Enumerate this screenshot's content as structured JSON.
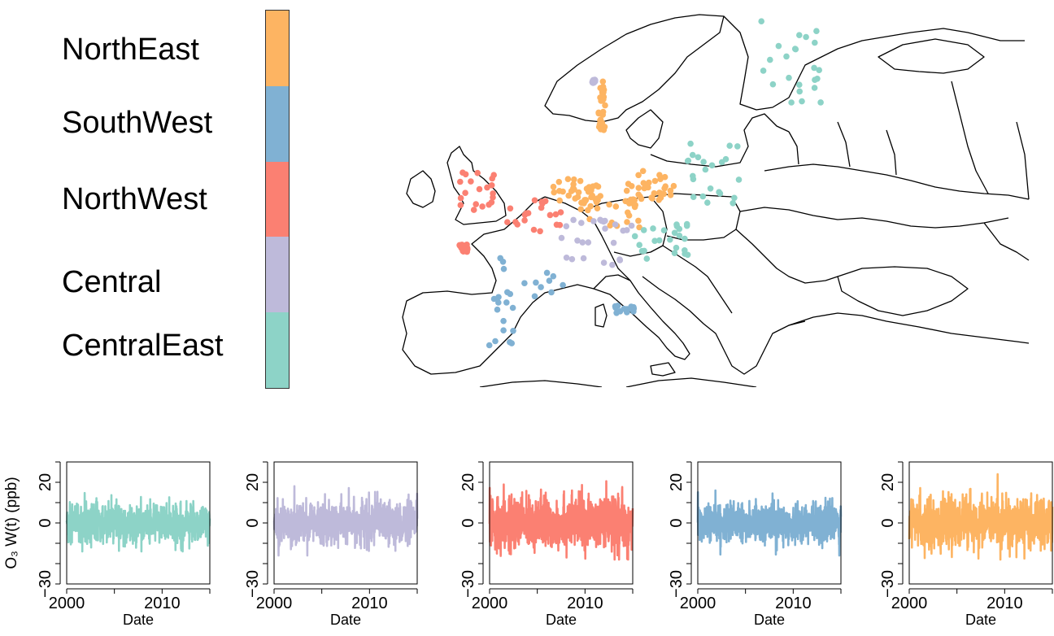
{
  "legend": {
    "regions": [
      {
        "label": "NorthEast",
        "color": "#FDB462"
      },
      {
        "label": "SouthWest",
        "color": "#80B1D3"
      },
      {
        "label": "NorthWest",
        "color": "#FB8072"
      },
      {
        "label": "Central",
        "color": "#BEBADA"
      },
      {
        "label": "CentralEast",
        "color": "#8DD3C7"
      }
    ]
  },
  "map": {
    "station_groups": [
      {
        "region": "NorthEast",
        "color": "#FDB462",
        "count": 120
      },
      {
        "region": "SouthWest",
        "color": "#80B1D3",
        "count": 40
      },
      {
        "region": "NorthWest",
        "color": "#FB8072",
        "count": 60
      },
      {
        "region": "Central",
        "color": "#BEBADA",
        "count": 50
      },
      {
        "region": "CentralEast",
        "color": "#8DD3C7",
        "count": 70
      }
    ]
  },
  "chart_data": [
    {
      "type": "line",
      "series": [
        {
          "color": "#8DD3C7",
          "range": [
            -14,
            18
          ]
        }
      ],
      "x_ticks": [
        "2000",
        "2010"
      ],
      "y_ticks": [
        "−30",
        "0",
        "20"
      ],
      "xlim": [
        2000,
        2015
      ],
      "ylim": [
        -30,
        30
      ],
      "xlabel": "Date",
      "ylabel": "O₃ W(t) (ppb)"
    },
    {
      "type": "line",
      "series": [
        {
          "color": "#BEBADA",
          "range": [
            -16,
            20
          ]
        }
      ],
      "x_ticks": [
        "2000",
        "2010"
      ],
      "y_ticks": [
        "−30",
        "0",
        "20"
      ],
      "xlim": [
        2000,
        2015
      ],
      "ylim": [
        -30,
        30
      ],
      "xlabel": "Date",
      "ylabel": ""
    },
    {
      "type": "line",
      "series": [
        {
          "color": "#FB8072",
          "range": [
            -18,
            26
          ]
        }
      ],
      "x_ticks": [
        "2000",
        "2010"
      ],
      "y_ticks": [
        "−30",
        "0",
        "20"
      ],
      "xlim": [
        2000,
        2015
      ],
      "ylim": [
        -30,
        30
      ],
      "xlabel": "Date",
      "ylabel": ""
    },
    {
      "type": "line",
      "series": [
        {
          "color": "#80B1D3",
          "range": [
            -16,
            16
          ]
        }
      ],
      "x_ticks": [
        "2000",
        "2010"
      ],
      "y_ticks": [
        "−30",
        "0",
        "20"
      ],
      "xlim": [
        2000,
        2015
      ],
      "ylim": [
        -30,
        30
      ],
      "xlabel": "Date",
      "ylabel": ""
    },
    {
      "type": "line",
      "series": [
        {
          "color": "#FDB462",
          "range": [
            -18,
            24
          ]
        }
      ],
      "x_ticks": [
        "2000",
        "2010"
      ],
      "y_ticks": [
        "−30",
        "0",
        "20"
      ],
      "xlim": [
        2000,
        2015
      ],
      "ylim": [
        -30,
        30
      ],
      "xlabel": "Date",
      "ylabel": ""
    }
  ]
}
